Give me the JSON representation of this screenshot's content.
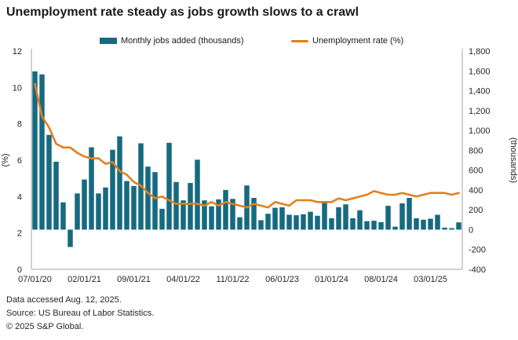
{
  "title": "Unemployment rate steady as jobs growth slows to a crawl",
  "legend": [
    {
      "label": "Monthly jobs added (thousands)",
      "color": "#166A80",
      "type": "bar"
    },
    {
      "label": "Unemployment rate (%)",
      "color": "#E2801E",
      "type": "line"
    }
  ],
  "chart_data": {
    "type": "combo",
    "x": [
      "2020-07",
      "2020-08",
      "2020-09",
      "2020-10",
      "2020-11",
      "2020-12",
      "2021-01",
      "2021-02",
      "2021-03",
      "2021-04",
      "2021-05",
      "2021-06",
      "2021-07",
      "2021-08",
      "2021-09",
      "2021-10",
      "2021-11",
      "2021-12",
      "2022-01",
      "2022-02",
      "2022-03",
      "2022-04",
      "2022-05",
      "2022-06",
      "2022-07",
      "2022-08",
      "2022-09",
      "2022-10",
      "2022-11",
      "2022-12",
      "2023-01",
      "2023-02",
      "2023-03",
      "2023-04",
      "2023-05",
      "2023-06",
      "2023-07",
      "2023-08",
      "2023-09",
      "2023-10",
      "2023-11",
      "2023-12",
      "2024-01",
      "2024-02",
      "2024-03",
      "2024-04",
      "2024-05",
      "2024-06",
      "2024-07",
      "2024-08",
      "2024-09",
      "2024-10",
      "2024-11",
      "2024-12",
      "2025-01",
      "2025-02",
      "2025-03",
      "2025-04",
      "2025-05",
      "2025-06",
      "2025-07"
    ],
    "series": [
      {
        "name": "Monthly jobs added (thousands)",
        "type": "bar",
        "axis": "right",
        "color": "#166A80",
        "values": [
          1595,
          1565,
          955,
          685,
          275,
          -175,
          365,
          505,
          830,
          365,
          425,
          805,
          940,
          490,
          440,
          870,
          635,
          580,
          210,
          875,
          480,
          295,
          470,
          705,
          295,
          235,
          305,
          400,
          310,
          125,
          445,
          320,
          95,
          160,
          220,
          225,
          150,
          145,
          155,
          180,
          140,
          270,
          115,
          225,
          255,
          115,
          195,
          85,
          90,
          75,
          240,
          30,
          265,
          320,
          115,
          100,
          110,
          150,
          20,
          15,
          73
        ]
      },
      {
        "name": "Unemployment rate (%)",
        "type": "line",
        "axis": "left",
        "color": "#E2801E",
        "values": [
          10.2,
          8.4,
          7.8,
          6.9,
          6.7,
          6.7,
          6.4,
          6.2,
          6.1,
          6.1,
          5.8,
          5.9,
          5.4,
          5.2,
          4.8,
          4.6,
          4.2,
          3.9,
          4.0,
          3.8,
          3.6,
          3.6,
          3.6,
          3.6,
          3.5,
          3.7,
          3.5,
          3.7,
          3.6,
          3.5,
          3.4,
          3.6,
          3.5,
          3.4,
          3.7,
          3.6,
          3.5,
          3.8,
          3.8,
          3.8,
          3.7,
          3.7,
          3.7,
          3.9,
          3.8,
          3.9,
          4.0,
          4.1,
          4.3,
          4.2,
          4.1,
          4.1,
          4.2,
          4.1,
          4.0,
          4.1,
          4.2,
          4.2,
          4.2,
          4.1,
          4.2
        ]
      }
    ],
    "left_axis": {
      "label": "(%)",
      "min": 0,
      "max": 12,
      "step": 2
    },
    "right_axis": {
      "label": "(thousands)",
      "min": -400,
      "max": 1800,
      "step": 200
    },
    "x_ticks": [
      {
        "index": 0,
        "label": "07/01/20"
      },
      {
        "index": 7,
        "label": "02/01/21"
      },
      {
        "index": 14,
        "label": "09/01/21"
      },
      {
        "index": 21,
        "label": "04/01/22"
      },
      {
        "index": 28,
        "label": "11/01/22"
      },
      {
        "index": 35,
        "label": "06/01/23"
      },
      {
        "index": 42,
        "label": "01/01/24"
      },
      {
        "index": 49,
        "label": "08/01/24"
      },
      {
        "index": 56,
        "label": "03/01/25"
      }
    ],
    "legend_position": "top",
    "grid": false
  },
  "footer": {
    "line1": "Data accessed Aug. 12, 2025.",
    "line2": "Source: US Bureau of Labor Statistics.",
    "line3": "© 2025 S&P Global."
  }
}
